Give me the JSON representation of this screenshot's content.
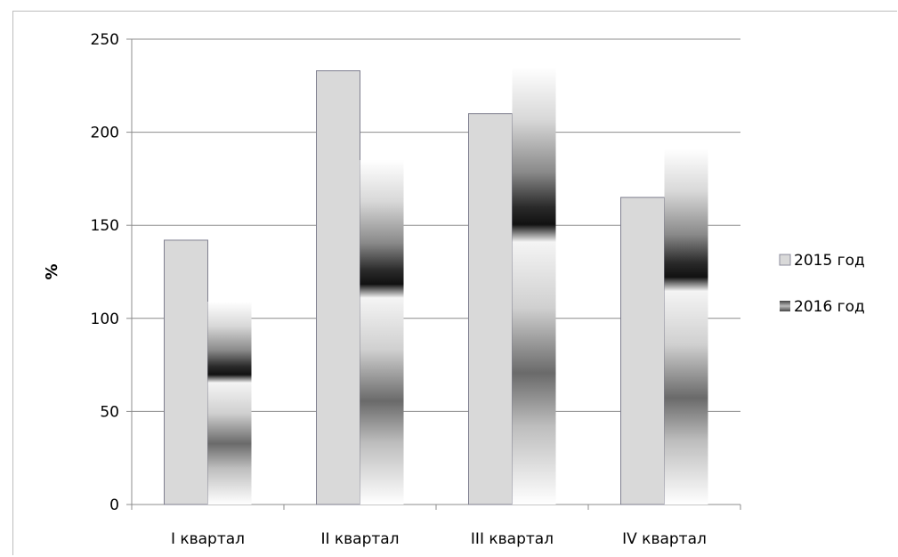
{
  "chart_data": {
    "type": "bar",
    "title": "",
    "xlabel": "",
    "ylabel": "%",
    "ylim": [
      0,
      250
    ],
    "yticks": [
      0,
      50,
      100,
      150,
      200,
      250
    ],
    "grid": true,
    "legend_position": "right",
    "categories": [
      "I квартал",
      "II квартал",
      "III квартал",
      "IV квартал"
    ],
    "series": [
      {
        "name": "2015 год",
        "values": [
          142,
          233,
          210,
          165
        ],
        "color": "#d9d9d9",
        "pattern": "solid"
      },
      {
        "name": "2016 год",
        "values": [
          109,
          185,
          235,
          191
        ],
        "color": "#1a1a1a",
        "pattern": "gradient-bands"
      }
    ]
  }
}
